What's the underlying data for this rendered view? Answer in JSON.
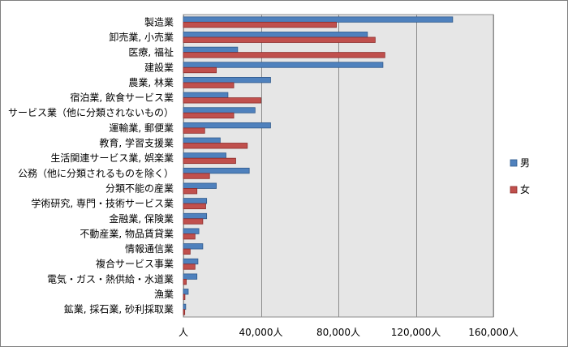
{
  "chart_data": {
    "type": "bar",
    "orientation": "horizontal",
    "categories": [
      "製造業",
      "卸売業, 小売業",
      "医療, 福祉",
      "建設業",
      "農業, 林業",
      "宿泊業, 飲食サービス業",
      "サービス業（他に分類されないもの）",
      "運輸業, 郵便業",
      "教育, 学習支援業",
      "生活関連サービス業, 娯楽業",
      "公務（他に分類されるものを除く）",
      "分類不能の産業",
      "学術研究, 専門・技術サービス業",
      "金融業, 保険業",
      "不動産業, 物品賃貸業",
      "情報通信業",
      "複合サービス事業",
      "電気・ガス・熱供給・水道業",
      "漁業",
      "鉱業, 採石業, 砂利採取業"
    ],
    "series": [
      {
        "name": "男",
        "color": "#4f81bd",
        "values": [
          139000,
          95000,
          28000,
          103000,
          45000,
          23000,
          37000,
          45000,
          19000,
          22000,
          34000,
          17000,
          12000,
          12000,
          8000,
          10000,
          7500,
          7000,
          2500,
          1200
        ]
      },
      {
        "name": "女",
        "color": "#c0504d",
        "values": [
          79000,
          99000,
          104000,
          17000,
          26000,
          40000,
          26000,
          11000,
          33000,
          27000,
          13500,
          7000,
          11500,
          10000,
          6000,
          3500,
          6000,
          1500,
          800,
          700
        ]
      }
    ],
    "xlim": [
      0,
      160000
    ],
    "xticks": [
      0,
      40000,
      80000,
      120000,
      160000
    ],
    "xtick_labels": [
      "人",
      "40,000人",
      "80,000人",
      "120,000人",
      "160,000人"
    ],
    "grid": true,
    "legend_position": "right"
  }
}
